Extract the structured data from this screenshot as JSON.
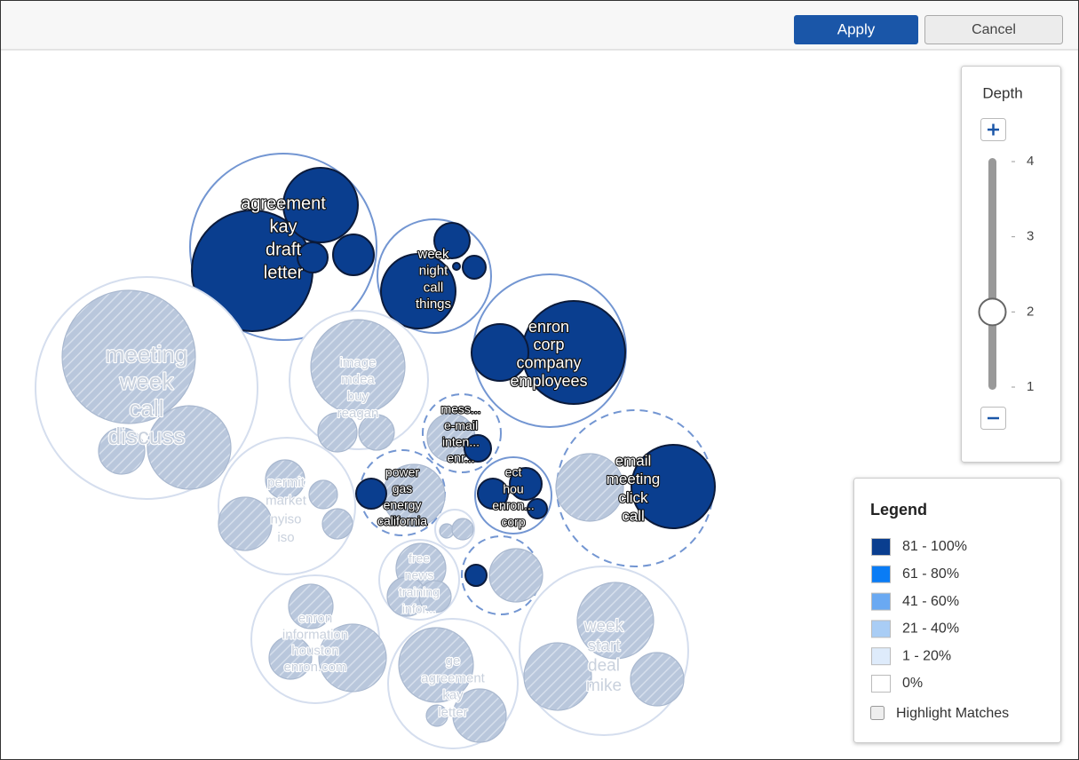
{
  "toolbar": {
    "apply": "Apply",
    "cancel": "Cancel"
  },
  "depth": {
    "label": "Depth",
    "ticks": [
      4,
      3,
      2,
      1
    ],
    "value": 2
  },
  "legend": {
    "title": "Legend",
    "items": [
      {
        "label": "81 - 100%",
        "color": "#0a3e8f"
      },
      {
        "label": "61 - 80%",
        "color": "#0a7cf5"
      },
      {
        "label": "41 - 60%",
        "color": "#6aa9f2"
      },
      {
        "label": "21 - 40%",
        "color": "#a9cdf5"
      },
      {
        "label": "1 - 20%",
        "color": "#deebfb"
      },
      {
        "label": "0%",
        "color": "#ffffff"
      }
    ],
    "highlight_matches": "Highlight Matches"
  },
  "clusters": [
    {
      "words": [
        "agreement",
        "kay",
        "draft",
        "letter"
      ]
    },
    {
      "words": [
        "week",
        "night",
        "call",
        "things"
      ]
    },
    {
      "words": [
        "enron",
        "corp",
        "company",
        "employees"
      ]
    },
    {
      "words": [
        "meeting",
        "week",
        "call",
        "discuss"
      ]
    },
    {
      "words": [
        "image",
        "mdea",
        "buy",
        "reagan"
      ]
    },
    {
      "words": [
        "mess...",
        "e-mail",
        "inten...",
        "enr..."
      ]
    },
    {
      "words": [
        "permit",
        "market",
        "nyiso",
        "iso"
      ]
    },
    {
      "words": [
        "power",
        "gas",
        "energy",
        "california"
      ]
    },
    {
      "words": [
        "ect",
        "hou",
        "enron...",
        "corp"
      ]
    },
    {
      "words": [
        "email",
        "meeting",
        "click",
        "call"
      ]
    },
    {
      "words": [
        "free",
        "news",
        "training",
        "infor..."
      ]
    },
    {
      "words": [
        "enron",
        "information",
        "houston",
        "enron.com"
      ]
    },
    {
      "words": [
        "ge",
        "agreement",
        "kay",
        "letter"
      ]
    },
    {
      "words": [
        "week",
        "start",
        "deal",
        "mike"
      ]
    }
  ]
}
